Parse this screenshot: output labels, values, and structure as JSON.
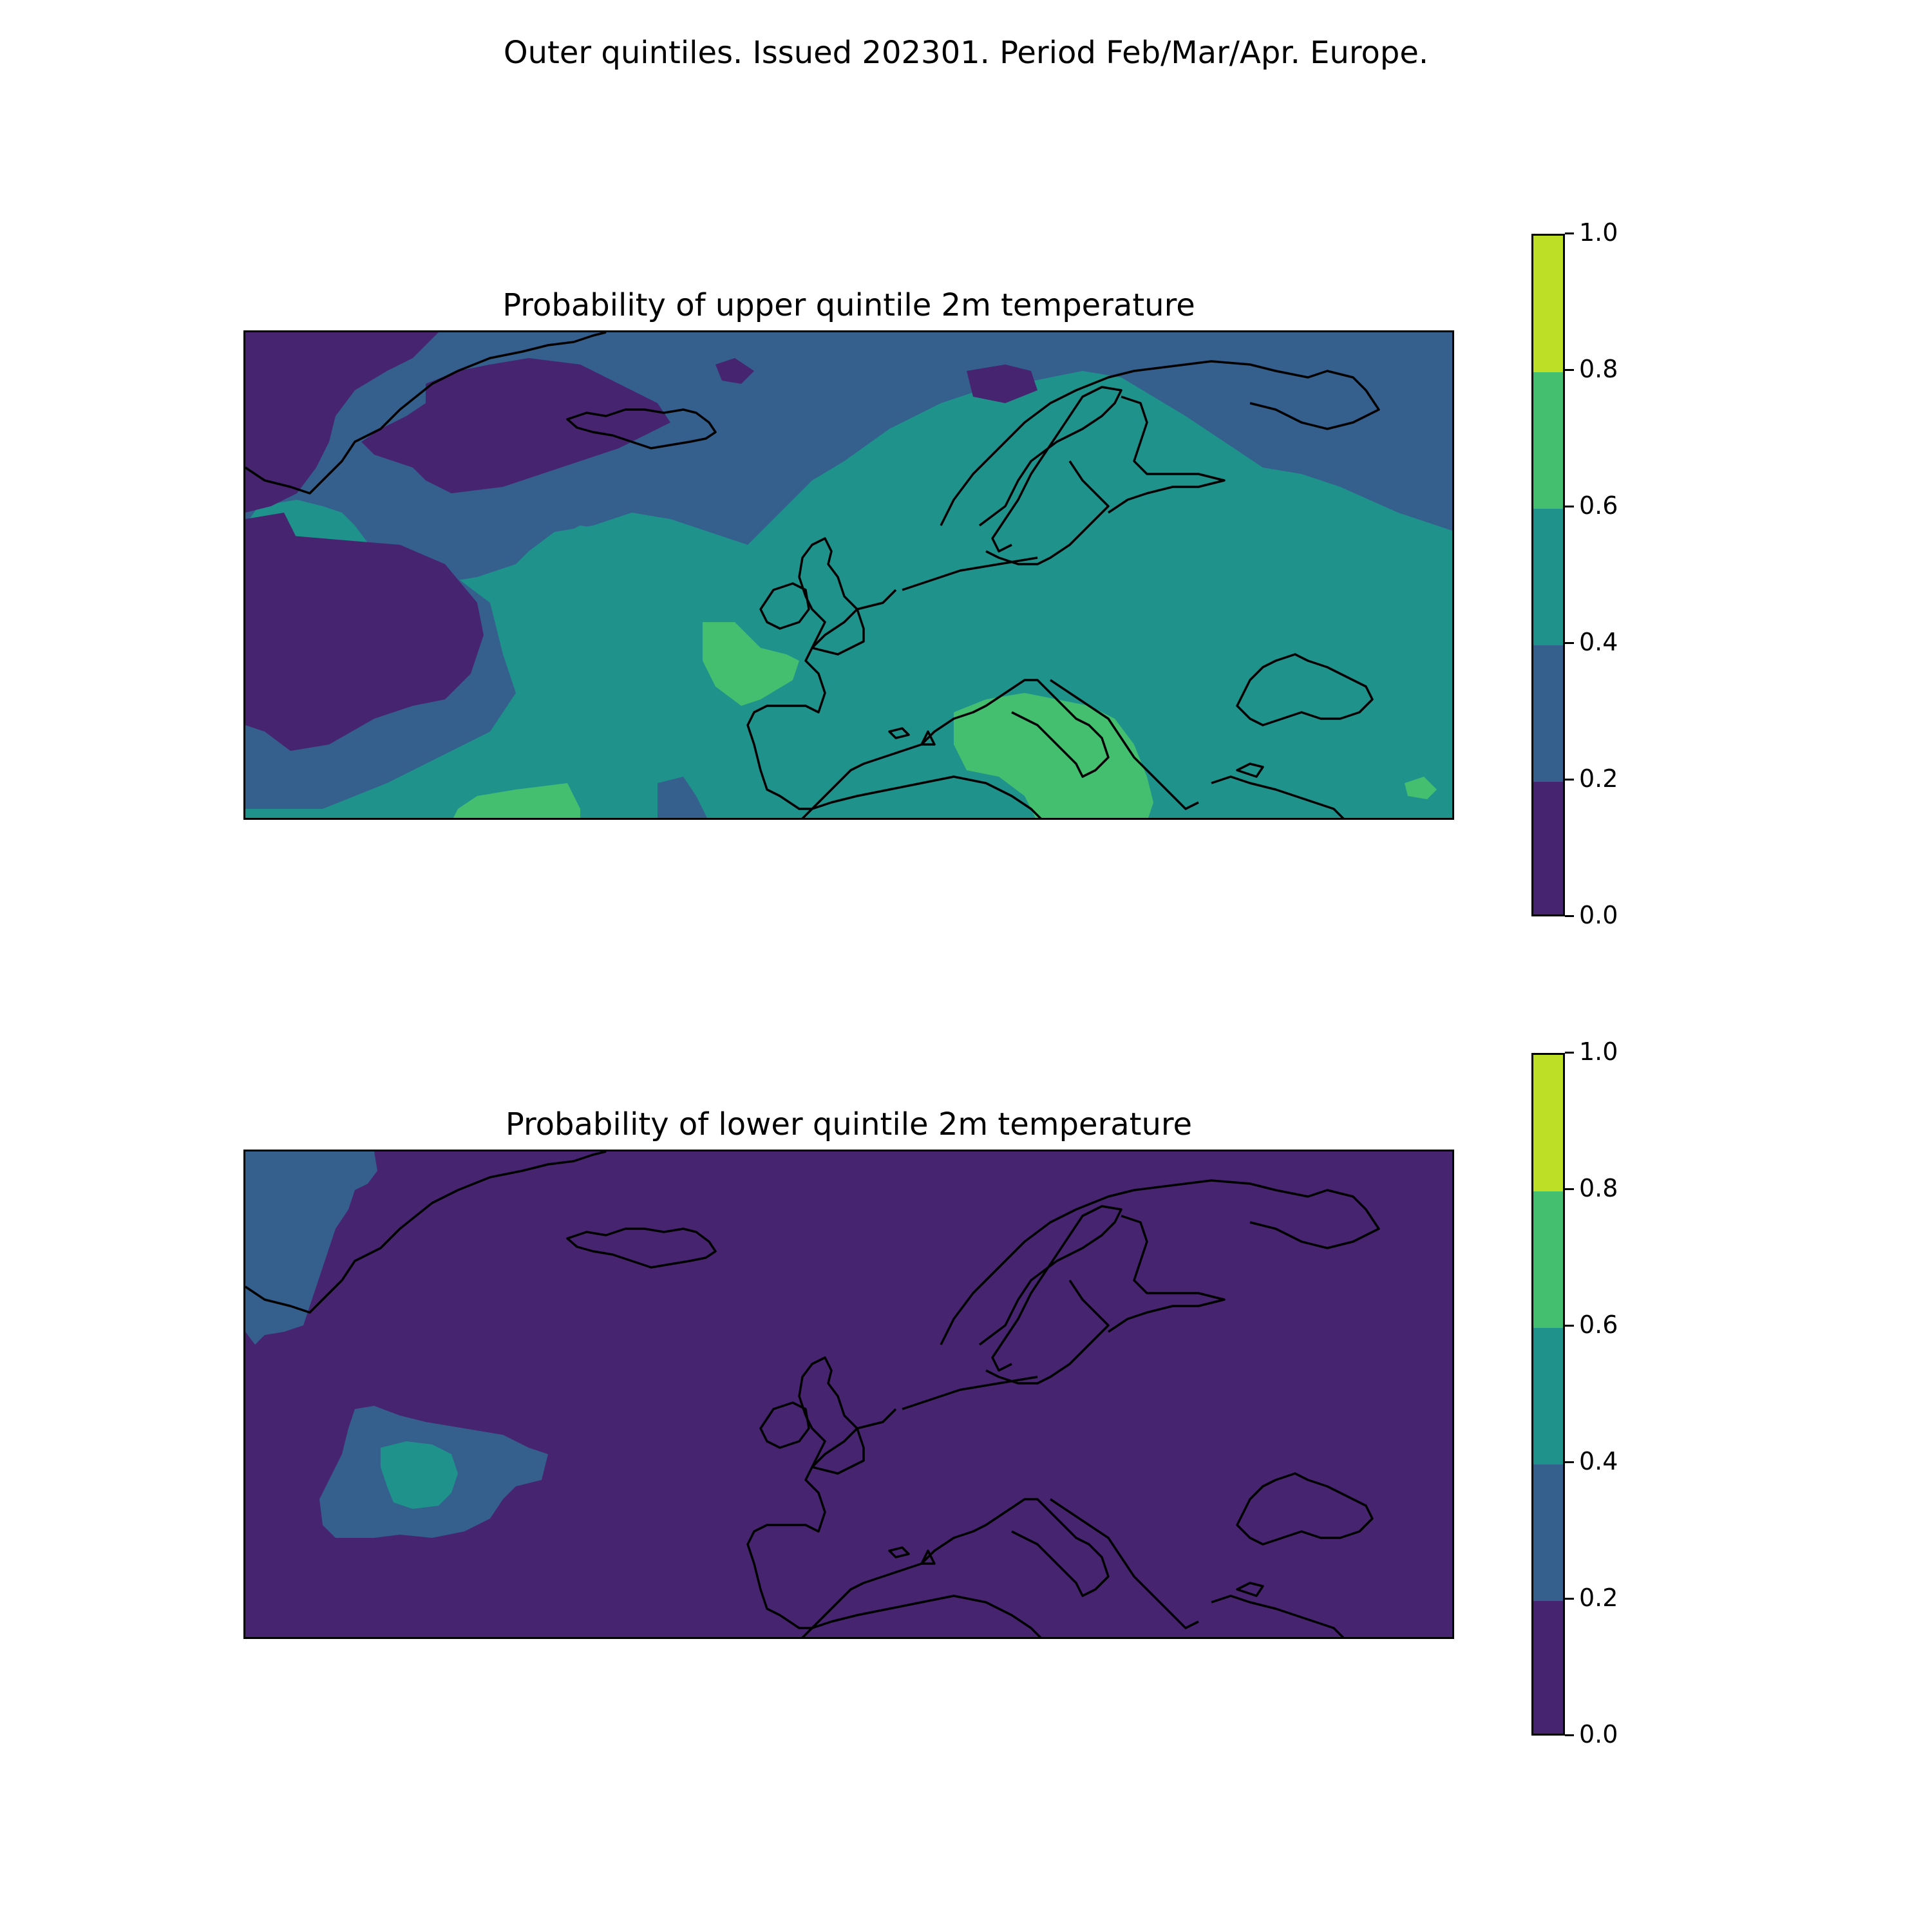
{
  "title": "Outer quintiles. Issued 202301. Period Feb/Mar/Apr. Europe.",
  "colors": {
    "c0": "#46246f",
    "c1": "#355f8d",
    "c2": "#20928c",
    "c3": "#44bf70",
    "c4": "#bddf26",
    "coast": "#000000"
  },
  "panels": [
    {
      "title": "Probability of upper quintile 2m temperature",
      "colorbar": {
        "bins": [
          0.0,
          0.2,
          0.4,
          0.6,
          0.8,
          1.0
        ],
        "tick_labels": [
          "0.0",
          "0.2",
          "0.4",
          "0.6",
          "0.8",
          "1.0"
        ]
      }
    },
    {
      "title": "Probability of lower quintile 2m temperature",
      "colorbar": {
        "bins": [
          0.0,
          0.2,
          0.4,
          0.6,
          0.8,
          1.0
        ],
        "tick_labels": [
          "0.0",
          "0.2",
          "0.4",
          "0.6",
          "0.8",
          "1.0"
        ]
      }
    }
  ]
}
